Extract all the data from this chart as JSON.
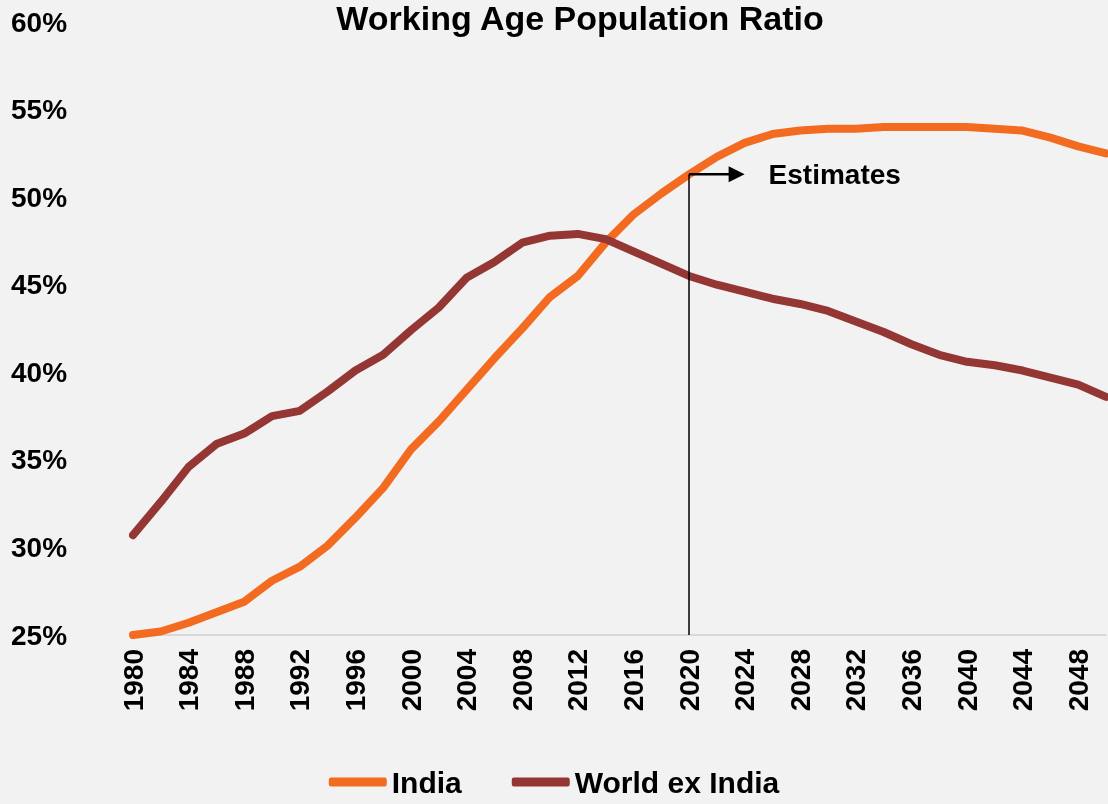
{
  "chart_data": {
    "type": "line",
    "title": "Working Age Population Ratio",
    "categories": [
      "1980",
      null,
      "1984",
      null,
      "1988",
      null,
      "1992",
      null,
      "1996",
      null,
      "2000",
      null,
      "2004",
      null,
      "2008",
      null,
      "2012",
      null,
      "2016",
      null,
      "2020",
      null,
      "2024",
      null,
      "2028",
      null,
      "2032",
      null,
      "2036",
      null,
      "2040",
      null,
      "2044",
      null,
      "2048",
      null
    ],
    "series": [
      {
        "name": "India",
        "color": "#f26b21",
        "values": [
          25.0,
          25.2,
          25.7,
          26.3,
          26.9,
          28.1,
          28.9,
          30.1,
          31.7,
          33.4,
          35.6,
          37.2,
          39.0,
          40.8,
          42.5,
          44.3,
          45.5,
          47.4,
          49.0,
          50.2,
          51.3,
          52.3,
          53.1,
          53.6,
          53.8,
          53.9,
          53.9,
          54.0,
          54.0,
          54.0,
          54.0,
          53.9,
          53.8,
          53.4,
          52.9,
          52.5
        ]
      },
      {
        "name": "World ex India",
        "color": "#943634",
        "values": [
          30.7,
          32.6,
          34.6,
          35.9,
          36.5,
          37.5,
          37.8,
          38.9,
          40.1,
          41.0,
          42.4,
          43.7,
          45.4,
          46.3,
          47.4,
          47.8,
          47.9,
          47.6,
          46.9,
          46.2,
          45.5,
          45.0,
          44.6,
          44.2,
          43.9,
          43.5,
          42.9,
          42.3,
          41.6,
          41.0,
          40.6,
          40.4,
          40.1,
          39.7,
          39.3,
          38.6
        ]
      }
    ],
    "ylim": [
      25,
      60
    ],
    "yticks": [
      {
        "value": 25,
        "label": "25%"
      },
      {
        "value": 30,
        "label": "30%"
      },
      {
        "value": 35,
        "label": "35%"
      },
      {
        "value": 40,
        "label": "40%"
      },
      {
        "value": 45,
        "label": "45%"
      },
      {
        "value": 50,
        "label": "50%"
      },
      {
        "value": 55,
        "label": "55%"
      },
      {
        "value": 60,
        "label": "60%"
      }
    ],
    "ref_lines": [
      {
        "axis": "x",
        "value": "2020",
        "label": "Estimates",
        "color": "#000000"
      }
    ],
    "grid": false,
    "legend": "bottom",
    "marker": "none",
    "line_style": "solid"
  }
}
